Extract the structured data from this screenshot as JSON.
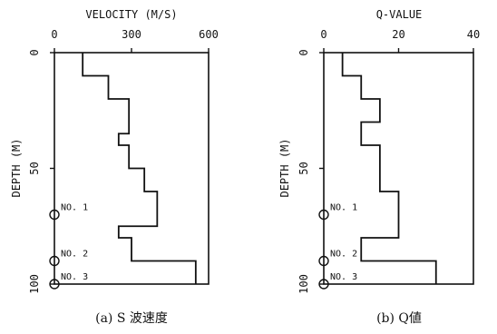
{
  "colors": {
    "ink": "#111111",
    "background": "#ffffff"
  },
  "chart_data": [
    {
      "type": "line",
      "chart_kind": "step depth profile",
      "title": "VELOCITY (M/S)",
      "ylabel": "DEPTH (M)",
      "caption": "(a)  S 波速度",
      "xlim": [
        0,
        600
      ],
      "ylim": [
        0,
        100
      ],
      "y_inverted": true,
      "x_axis_position": "top",
      "grid": false,
      "xticks": [
        0,
        300,
        600
      ],
      "yticks": [
        0,
        50,
        100
      ],
      "depth_x": 0,
      "segments": [
        {
          "from_depth": 0,
          "to_depth": 10,
          "value": 110
        },
        {
          "from_depth": 10,
          "to_depth": 20,
          "value": 210
        },
        {
          "from_depth": 20,
          "to_depth": 35,
          "value": 290
        },
        {
          "from_depth": 35,
          "to_depth": 40,
          "value": 250
        },
        {
          "from_depth": 40,
          "to_depth": 50,
          "value": 290
        },
        {
          "from_depth": 50,
          "to_depth": 60,
          "value": 350
        },
        {
          "from_depth": 60,
          "to_depth": 75,
          "value": 400
        },
        {
          "from_depth": 75,
          "to_depth": 80,
          "value": 250
        },
        {
          "from_depth": 80,
          "to_depth": 90,
          "value": 300
        },
        {
          "from_depth": 90,
          "to_depth": 100,
          "value": 550
        }
      ],
      "annotations": [
        {
          "label": "NO. 1",
          "depth": 70
        },
        {
          "label": "NO. 2",
          "depth": 90
        },
        {
          "label": "NO. 3",
          "depth": 100
        }
      ]
    },
    {
      "type": "line",
      "chart_kind": "step depth profile",
      "title": "Q-VALUE",
      "ylabel": "DEPTH (M)",
      "caption": "(b)  Q値",
      "xlim": [
        0,
        40
      ],
      "ylim": [
        0,
        100
      ],
      "y_inverted": true,
      "x_axis_position": "top",
      "grid": false,
      "xticks": [
        0,
        20,
        40
      ],
      "yticks": [
        0,
        50,
        100
      ],
      "segments": [
        {
          "from_depth": 0,
          "to_depth": 10,
          "value": 5
        },
        {
          "from_depth": 10,
          "to_depth": 20,
          "value": 10
        },
        {
          "from_depth": 20,
          "to_depth": 30,
          "value": 15
        },
        {
          "from_depth": 30,
          "to_depth": 40,
          "value": 10
        },
        {
          "from_depth": 40,
          "to_depth": 60,
          "value": 15
        },
        {
          "from_depth": 60,
          "to_depth": 80,
          "value": 20
        },
        {
          "from_depth": 80,
          "to_depth": 90,
          "value": 10
        },
        {
          "from_depth": 90,
          "to_depth": 100,
          "value": 30
        }
      ],
      "annotations": [
        {
          "label": "NO. 1",
          "depth": 70
        },
        {
          "label": "NO. 2",
          "depth": 90
        },
        {
          "label": "NO. 3",
          "depth": 100
        }
      ]
    }
  ]
}
